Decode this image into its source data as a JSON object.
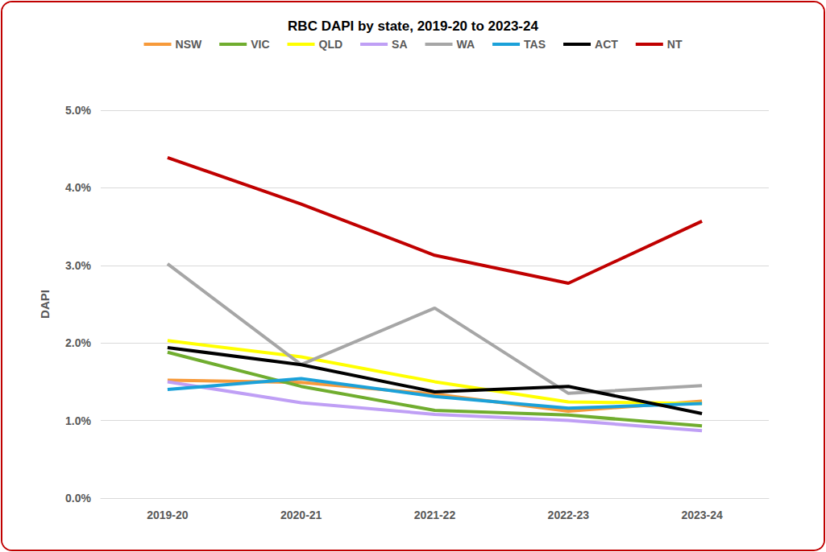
{
  "chart_data": {
    "type": "line",
    "title": "RBC DAPI by state, 2019-20 to 2023-24",
    "y_label": "DAPI",
    "categories": [
      "2019-20",
      "2020-21",
      "2021-22",
      "2022-23",
      "2023-24"
    ],
    "series": [
      {
        "name": "NSW",
        "color": "#f79a3a",
        "values": [
          1.52,
          1.49,
          1.34,
          1.12,
          1.25
        ]
      },
      {
        "name": "VIC",
        "color": "#70ad2f",
        "values": [
          1.88,
          1.44,
          1.13,
          1.07,
          0.93
        ]
      },
      {
        "name": "QLD",
        "color": "#ffff00",
        "values": [
          2.03,
          1.82,
          1.5,
          1.24,
          1.22
        ]
      },
      {
        "name": "SA",
        "color": "#bf9ff5",
        "values": [
          1.5,
          1.23,
          1.08,
          1.0,
          0.87
        ]
      },
      {
        "name": "WA",
        "color": "#a6a6a6",
        "values": [
          3.02,
          1.72,
          2.45,
          1.35,
          1.45
        ]
      },
      {
        "name": "TAS",
        "color": "#1ba1d9",
        "values": [
          1.4,
          1.54,
          1.31,
          1.16,
          1.22
        ]
      },
      {
        "name": "ACT",
        "color": "#000000",
        "values": [
          1.94,
          1.72,
          1.37,
          1.44,
          1.09
        ]
      },
      {
        "name": "NT",
        "color": "#c00000",
        "values": [
          4.39,
          3.79,
          3.13,
          2.77,
          3.57
        ]
      }
    ],
    "ylim": [
      0,
      5
    ],
    "yticks": [
      {
        "value": 0,
        "label": "0.0%"
      },
      {
        "value": 1,
        "label": "1.0%"
      },
      {
        "value": 2,
        "label": "2.0%"
      },
      {
        "value": 3,
        "label": "3.0%"
      },
      {
        "value": 4,
        "label": "4.0%"
      },
      {
        "value": 5,
        "label": "5.0%"
      }
    ],
    "grid": true,
    "legend": "top"
  }
}
